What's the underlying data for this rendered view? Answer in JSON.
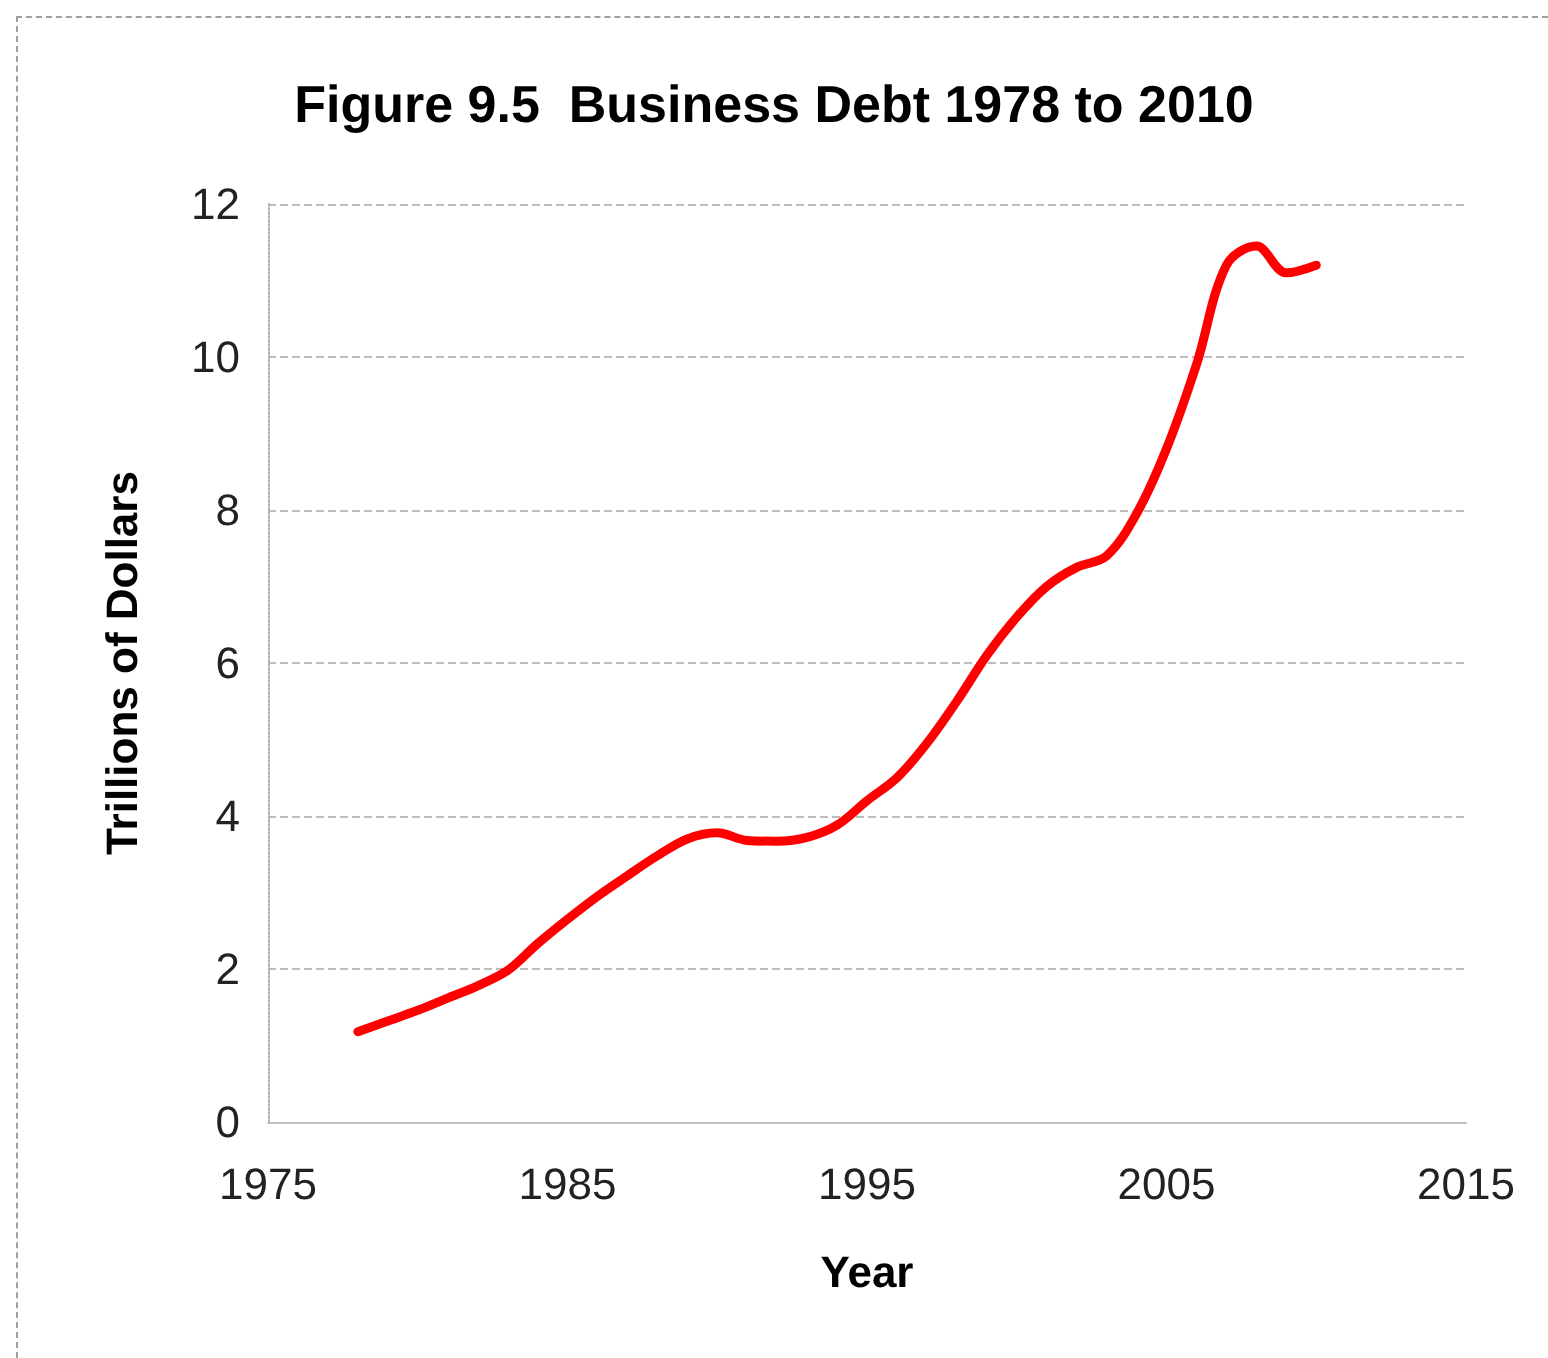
{
  "chart_data": {
    "type": "line",
    "title": "Figure 9.5  Business Debt 1978 to 2010",
    "xlabel": "Year",
    "ylabel": "Trillions of Dollars",
    "x": [
      1978,
      1979,
      1980,
      1981,
      1982,
      1983,
      1984,
      1985,
      1986,
      1987,
      1988,
      1989,
      1990,
      1991,
      1992,
      1993,
      1994,
      1995,
      1996,
      1997,
      1998,
      1999,
      2000,
      2001,
      2002,
      2003,
      2004,
      2005,
      2006,
      2007,
      2008,
      2009,
      2010
    ],
    "series": [
      {
        "color": "#ff0000",
        "values": [
          1.18,
          1.32,
          1.46,
          1.62,
          1.78,
          1.98,
          2.33,
          2.65,
          2.95,
          3.22,
          3.48,
          3.7,
          3.78,
          3.68,
          3.67,
          3.72,
          3.88,
          4.2,
          4.5,
          4.95,
          5.5,
          6.1,
          6.6,
          7.0,
          7.25,
          7.4,
          7.95,
          8.8,
          9.9,
          11.2,
          11.45,
          11.1,
          11.2
        ]
      }
    ],
    "xlim": [
      1975,
      2015
    ],
    "xticks": [
      1975,
      1985,
      1995,
      2005,
      2015
    ],
    "ylim": [
      0,
      12
    ],
    "yticks": [
      0,
      2,
      4,
      6,
      8,
      10,
      12
    ],
    "grid": "y",
    "marker": "none",
    "line_style": "solid"
  }
}
